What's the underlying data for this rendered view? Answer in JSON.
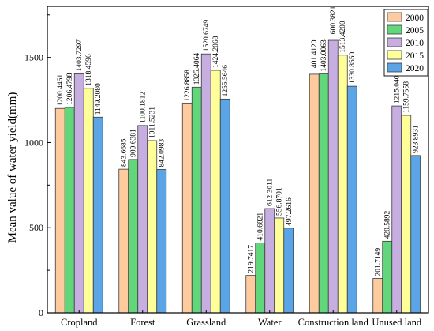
{
  "chart_data": {
    "type": "bar",
    "ylabel": "Mean value of water yield(mm)",
    "xlabel": "",
    "title": "",
    "ylim": [
      0,
      1800
    ],
    "yticks": [
      0,
      500,
      1000,
      1500
    ],
    "legend_position": "top-right",
    "categories": [
      "Cropland",
      "Forest",
      "Grassland",
      "Water",
      "Construction land",
      "Unused land"
    ],
    "series": [
      {
        "name": "2000",
        "color": "#FDCB9E",
        "values": [
          1200.4461,
          843.6685,
          1226.8858,
          219.7417,
          1401.412,
          201.7149
        ],
        "labels": [
          "1200.4461",
          "843.6685",
          "1226.8858",
          "219.7417",
          "1401.4120",
          "201.7149"
        ]
      },
      {
        "name": "2005",
        "color": "#62D67A",
        "values": [
          1206.4798,
          900.6381,
          1325.4064,
          410.6821,
          1403.0063,
          420.5892
        ],
        "labels": [
          "1206.4798",
          "900.6381",
          "1325.4064",
          "410.6821",
          "1403.0063",
          "420.5892"
        ]
      },
      {
        "name": "2010",
        "color": "#C7AEE0",
        "values": [
          1403.7297,
          1100.1812,
          1520.6749,
          612.3011,
          1600.3821,
          1215.0406
        ],
        "labels": [
          "1403.7297",
          "1100.1812",
          "1520.6749",
          "612.3011",
          "1600.3821",
          "1215.0406"
        ]
      },
      {
        "name": "2015",
        "color": "#FFFF99",
        "values": [
          1318.4596,
          1011.5231,
          1424.2068,
          556.8701,
          1513.42,
          1159.7558
        ],
        "labels": [
          "1318.4596",
          "1011.5231",
          "1424.2068",
          "556.8701",
          "1513.4200",
          "1159.7558"
        ]
      },
      {
        "name": "2020",
        "color": "#5BA4E6",
        "values": [
          1149.208,
          842.0983,
          1255.5646,
          497.2616,
          1330.855,
          923.8931
        ],
        "labels": [
          "1149.2080",
          "842.0983",
          "1255.5646",
          "497.2616",
          "1330.8550",
          "923.8931"
        ]
      }
    ]
  }
}
